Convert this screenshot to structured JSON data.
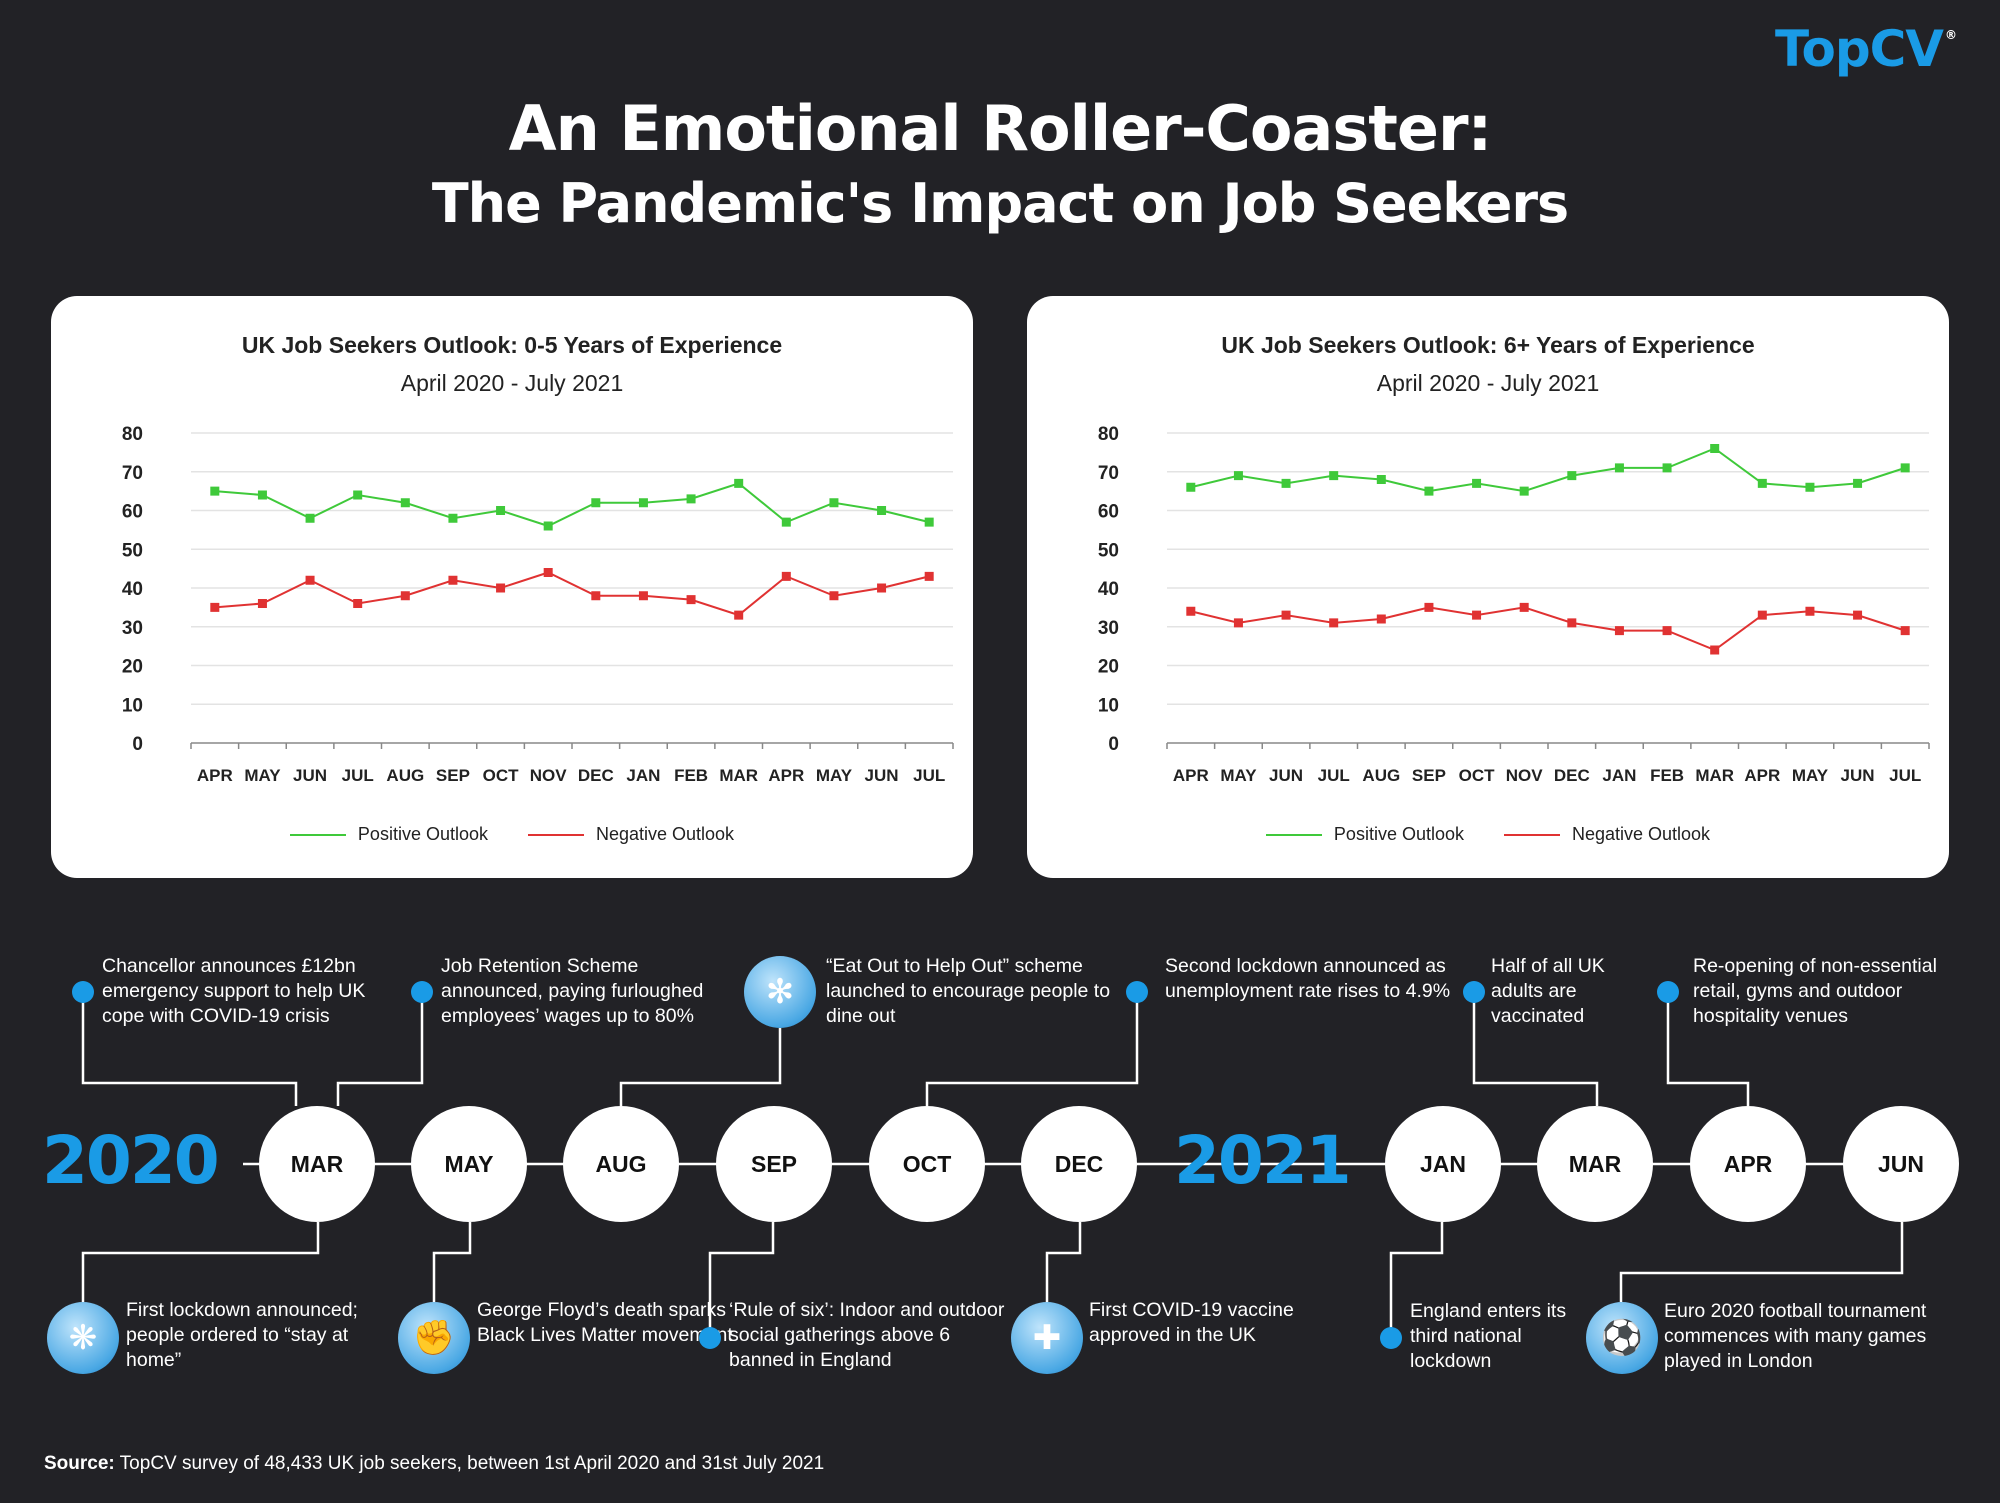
{
  "brand": "TopCV",
  "brand_mark": "®",
  "title_line1": "An Emotional Roller-Coaster:",
  "title_line2": "The Pandemic's Impact on Job Seekers",
  "colors": {
    "positive": "#3fc93a",
    "negative": "#e03232",
    "accent": "#1a9be6",
    "background": "#222226"
  },
  "chart_data": [
    {
      "type": "line",
      "title": "UK Job Seekers Outlook: 0-5 Years of Experience",
      "subtitle": "April 2020 - July 2021",
      "categories": [
        "APR",
        "MAY",
        "JUN",
        "JUL",
        "AUG",
        "SEP",
        "OCT",
        "NOV",
        "DEC",
        "JAN",
        "FEB",
        "MAR",
        "APR",
        "MAY",
        "JUN",
        "JUL"
      ],
      "yticks": [
        "0",
        "10",
        "20",
        "30",
        "40",
        "50",
        "60",
        "70",
        "80"
      ],
      "ylim": [
        0,
        80
      ],
      "grid": true,
      "legend_position": "bottom",
      "series": [
        {
          "name": "Positive Outlook",
          "color": "#3fc93a",
          "values": [
            65,
            64,
            58,
            64,
            62,
            58,
            60,
            56,
            62,
            62,
            63,
            67,
            57,
            62,
            60,
            57
          ]
        },
        {
          "name": "Negative Outlook",
          "color": "#e03232",
          "values": [
            35,
            36,
            42,
            36,
            38,
            42,
            40,
            44,
            38,
            38,
            37,
            33,
            43,
            38,
            40,
            43
          ]
        }
      ]
    },
    {
      "type": "line",
      "title": "UK Job Seekers Outlook: 6+ Years of Experience",
      "subtitle": "April 2020 - July 2021",
      "categories": [
        "APR",
        "MAY",
        "JUN",
        "JUL",
        "AUG",
        "SEP",
        "OCT",
        "NOV",
        "DEC",
        "JAN",
        "FEB",
        "MAR",
        "APR",
        "MAY",
        "JUN",
        "JUL"
      ],
      "yticks": [
        "0",
        "10",
        "20",
        "30",
        "40",
        "50",
        "60",
        "70",
        "80"
      ],
      "ylim": [
        0,
        80
      ],
      "grid": true,
      "legend_position": "bottom",
      "series": [
        {
          "name": "Positive Outlook",
          "color": "#3fc93a",
          "values": [
            66,
            69,
            67,
            69,
            68,
            65,
            67,
            65,
            69,
            71,
            71,
            76,
            67,
            66,
            67,
            71
          ]
        },
        {
          "name": "Negative Outlook",
          "color": "#e03232",
          "values": [
            34,
            31,
            33,
            31,
            32,
            35,
            33,
            35,
            31,
            29,
            29,
            24,
            33,
            34,
            33,
            29
          ]
        }
      ]
    }
  ],
  "timeline": {
    "year_2020": "2020",
    "year_2021": "2021",
    "months": [
      "MAR",
      "MAY",
      "AUG",
      "SEP",
      "OCT",
      "DEC",
      "JAN",
      "MAR",
      "APR",
      "JUN"
    ],
    "events_top": [
      "Chancellor announces £12bn emergency support to help UK cope with COVID-19 crisis",
      "Job Retention Scheme announced, paying furloughed employees’ wages up to 80%",
      "“Eat Out to Help Out” scheme launched to encourage people to dine out",
      "Second lockdown announced as unemployment rate rises to 4.9%",
      "Half of all UK adults are vaccinated",
      "Re-opening of non-essential retail, gyms and outdoor hospitality venues"
    ],
    "events_bottom": [
      "First lockdown announced; people ordered to “stay at home”",
      "George Floyd’s death sparks Black Lives Matter movement",
      "‘Rule of six’: Indoor and outdoor social gatherings above 6 banned in England",
      "First COVID-19 vaccine approved in the UK",
      "England enters its third national lockdown",
      "Euro 2020 football tournament commences with many games played in London"
    ],
    "icons": [
      "virus-icon",
      "fist-icon",
      "plate-icon",
      "vaccine-icon",
      "football-icon"
    ]
  },
  "source_label": "Source:",
  "source_text": " TopCV survey of 48,433 UK job seekers, between 1st April 2020 and 31st July 2021"
}
